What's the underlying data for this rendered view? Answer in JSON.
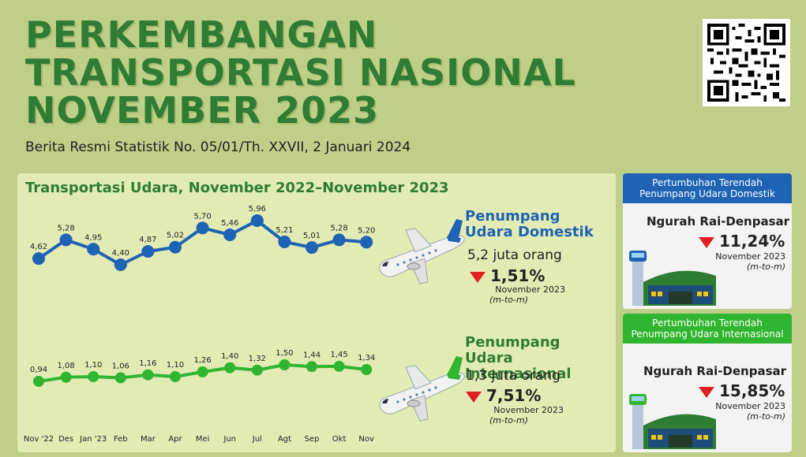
{
  "header": {
    "title_lines": [
      "PERKEMBANGAN",
      "TRANSPORTASI NASIONAL",
      "NOVEMBER 2023"
    ],
    "subtitle": "Berita Resmi Statistik No. 05/01/Th. XXVII, 2 Januari 2024"
  },
  "chart_panel": {
    "title": "Transportasi Udara, November 2022–November 2023"
  },
  "domestic": {
    "label_line1": "Penumpang",
    "label_line2": "Udara Domestik",
    "count": "5,2 juta orang",
    "change": "1,51%",
    "period": "November 2023",
    "basis": "(m-to-m)"
  },
  "international": {
    "label_line1": "Penumpang",
    "label_line2": "Udara Internasional",
    "count": "1,3 juta orang",
    "change": "7,51%",
    "period": "November 2023",
    "basis": "(m-to-m)"
  },
  "side_domestic": {
    "heading": "Pertumbuhan Terendah Penumpang Udara Domestik",
    "airport": "Ngurah Rai-Denpasar",
    "change": "11,24%",
    "period": "November 2023",
    "basis": "(m-to-m)",
    "color": "#1e63b4"
  },
  "side_international": {
    "heading": "Pertumbuhan Terendah Penumpang Udara Internasional",
    "airport": "Ngurah Rai-Denpasar",
    "change": "15,85%",
    "period": "November 2023",
    "basis": "(m-to-m)",
    "color": "#2fb52f"
  },
  "chart_data": {
    "type": "line",
    "title": "Transportasi Udara, November 2022–November 2023",
    "categories": [
      "Nov '22",
      "Des",
      "Jan '23",
      "Feb",
      "Mar",
      "Apr",
      "Mei",
      "Jun",
      "Jul",
      "Agt",
      "Sep",
      "Okt",
      "Nov"
    ],
    "series": [
      {
        "name": "Penumpang Udara Domestik",
        "values": [
          4.62,
          5.28,
          4.95,
          4.4,
          4.87,
          5.02,
          5.7,
          5.46,
          5.96,
          5.21,
          5.01,
          5.28,
          5.2
        ],
        "labels": [
          "4,62",
          "5,28",
          "4,95",
          "4,40",
          "4,87",
          "5,02",
          "5,70",
          "5,46",
          "5,96",
          "5,21",
          "5,01",
          "5,28",
          "5,20"
        ],
        "color": "#1e63b4"
      },
      {
        "name": "Penumpang Udara Internasional",
        "values": [
          0.94,
          1.08,
          1.1,
          1.06,
          1.16,
          1.1,
          1.26,
          1.4,
          1.32,
          1.5,
          1.44,
          1.45,
          1.34
        ],
        "labels": [
          "0,94",
          "1,08",
          "1,10",
          "1,06",
          "1,16",
          "1,10",
          "1,26",
          "1,40",
          "1,32",
          "1,50",
          "1,44",
          "1,45",
          "1,34"
        ],
        "color": "#2fb52f"
      }
    ],
    "grid": false
  }
}
